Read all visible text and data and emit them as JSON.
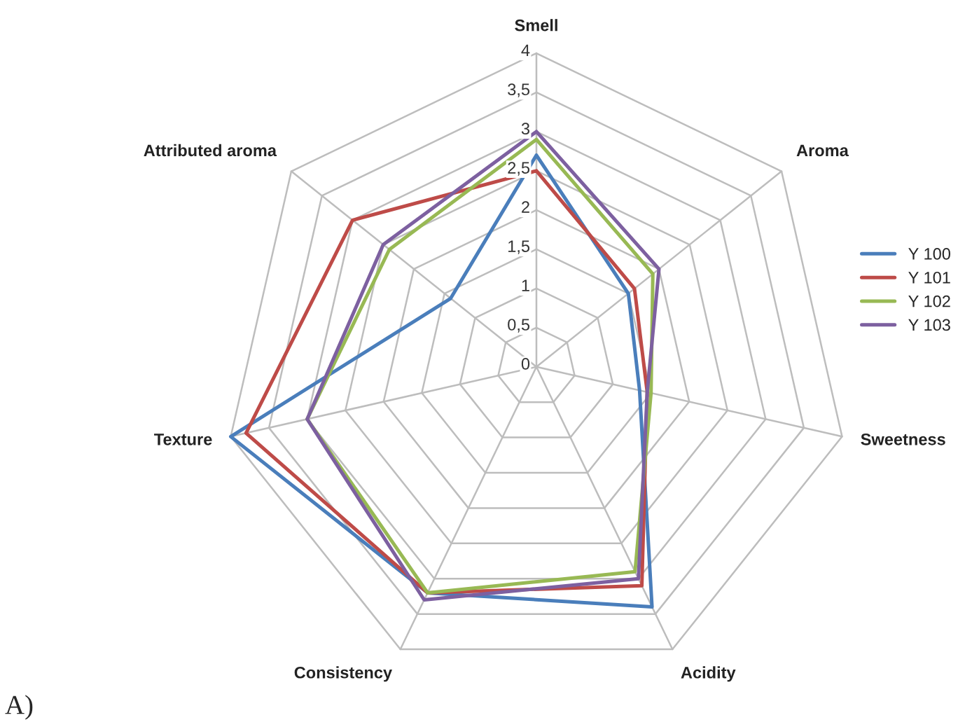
{
  "chart_data": {
    "type": "radar",
    "categories": [
      "Smell",
      "Aroma",
      "Sweetness",
      "Acidity",
      "Consistency",
      "Texture",
      "Attributed aroma"
    ],
    "series": [
      {
        "name": "Y 100",
        "color": "#4a7ebb",
        "values": [
          2.7,
          1.5,
          1.35,
          3.4,
          3.2,
          4.0,
          1.4
        ]
      },
      {
        "name": "Y 101",
        "color": "#be4b48",
        "values": [
          2.5,
          1.6,
          1.45,
          3.1,
          3.2,
          3.8,
          3.0
        ]
      },
      {
        "name": "Y 102",
        "color": "#98b954",
        "values": [
          2.9,
          1.9,
          1.5,
          2.9,
          3.2,
          3.0,
          2.4
        ]
      },
      {
        "name": "Y 103",
        "color": "#7d60a0",
        "values": [
          3.0,
          2.0,
          1.45,
          3.0,
          3.3,
          3.0,
          2.5
        ]
      }
    ],
    "ylim": [
      0,
      4
    ],
    "yticks": [
      {
        "value": 0,
        "label": "0"
      },
      {
        "value": 0.5,
        "label": "0,5"
      },
      {
        "value": 1,
        "label": "1"
      },
      {
        "value": 1.5,
        "label": "1,5"
      },
      {
        "value": 2,
        "label": "2"
      },
      {
        "value": 2.5,
        "label": "2,5"
      },
      {
        "value": 3,
        "label": "3"
      },
      {
        "value": 3.5,
        "label": "3,5"
      },
      {
        "value": 4,
        "label": "4"
      }
    ],
    "grid": true,
    "legend": "right",
    "annotations": [
      "A)"
    ]
  }
}
